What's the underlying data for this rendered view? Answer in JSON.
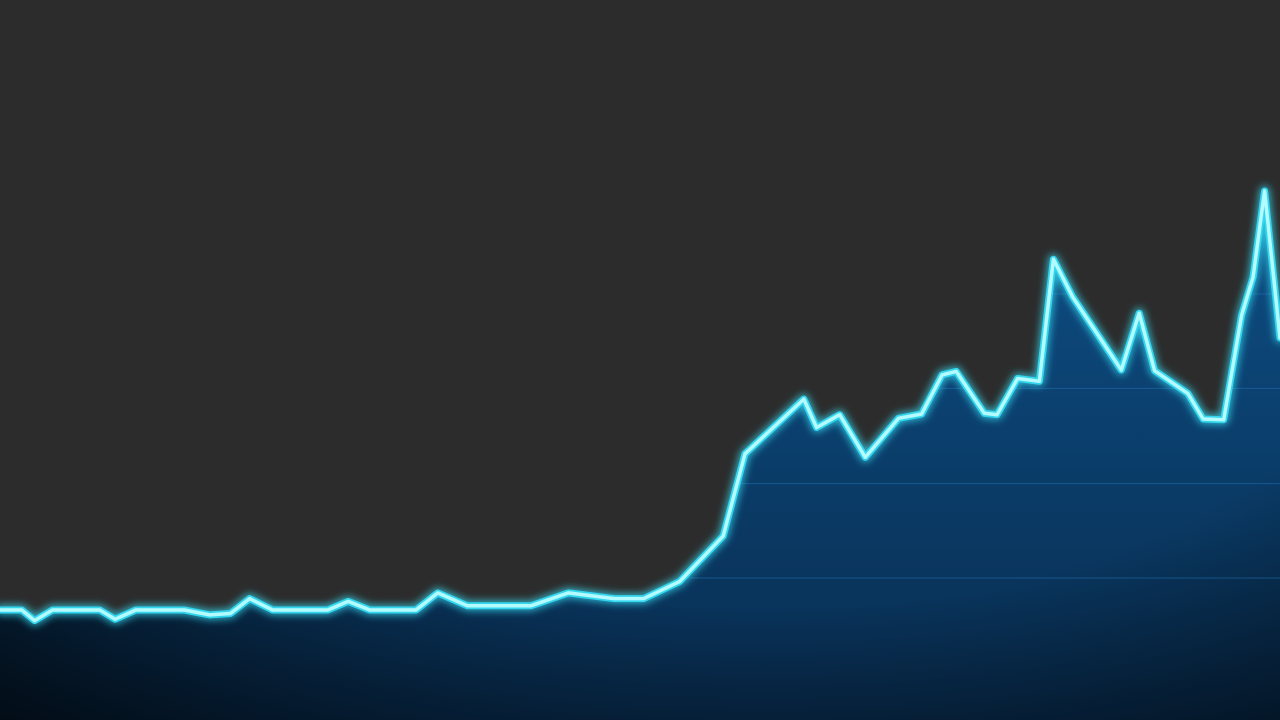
{
  "chart_data": {
    "type": "area",
    "title": "",
    "xlabel": "",
    "ylabel": "",
    "grid": true,
    "legend": "none",
    "xlim": [
      0,
      100
    ],
    "ylim": [
      0,
      100
    ],
    "x": [
      0,
      1.7,
      2.7,
      4.1,
      7.8,
      9,
      10.6,
      14.4,
      16.4,
      18,
      19.5,
      21.3,
      25.6,
      27.2,
      28.9,
      32.5,
      34.2,
      36.5,
      38.7,
      41.5,
      44.4,
      48,
      50.3,
      53.1,
      56.5,
      58.2,
      62.8,
      63.8,
      65.6,
      67.6,
      70.2,
      72,
      73.6,
      74.7,
      76.9,
      77.9,
      79.5,
      81.2,
      82.3,
      83.8,
      87.6,
      89,
      90.2,
      92.8,
      94,
      95.6,
      97,
      97.9,
      98.8,
      100
    ],
    "y": [
      15.5,
      15.5,
      14,
      15.5,
      15.5,
      14.2,
      15.5,
      15.5,
      14.8,
      15,
      17.1,
      15.5,
      15.5,
      16.7,
      15.5,
      15.5,
      17.9,
      16.1,
      16.1,
      16.1,
      17.9,
      17.1,
      17.1,
      19.5,
      25.9,
      37.5,
      45.2,
      41.2,
      43,
      37,
      42.5,
      43.1,
      48.6,
      49.1,
      43.2,
      43,
      48.1,
      47.7,
      64.9,
      59.6,
      49.3,
      57.3,
      49.2,
      46,
      42.4,
      42.3,
      57,
      62.4,
      74.5,
      53.8
    ],
    "colors": {
      "background": "#2c2c2c",
      "line": "#b4fbff",
      "glow": "#33d6ee",
      "fill_top": "#0d4f86",
      "fill_bottom": "#082c4f",
      "grid": "#1f73b8"
    }
  }
}
